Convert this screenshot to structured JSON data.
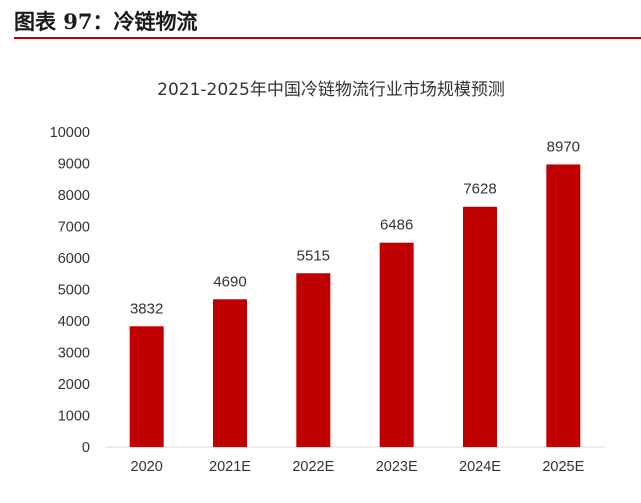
{
  "figure": {
    "label": "图表 97：冷链物流"
  },
  "colors": {
    "accent": "#c00000",
    "bar": "#c00000",
    "text": "#333333",
    "axis": "#d9d9d9"
  },
  "chart_data": {
    "type": "bar",
    "title": "2021-2025年中国冷链物流行业市场规模预测",
    "xlabel": "",
    "ylabel": "",
    "categories": [
      "2020",
      "2021E",
      "2022E",
      "2023E",
      "2024E",
      "2025E"
    ],
    "values": [
      3832,
      4690,
      5515,
      6486,
      7628,
      8970
    ],
    "ylim": [
      0,
      10000
    ],
    "yticks": [
      0,
      1000,
      2000,
      3000,
      4000,
      5000,
      6000,
      7000,
      8000,
      9000,
      10000
    ],
    "grid": false,
    "legend": "none",
    "data_labels": true
  }
}
